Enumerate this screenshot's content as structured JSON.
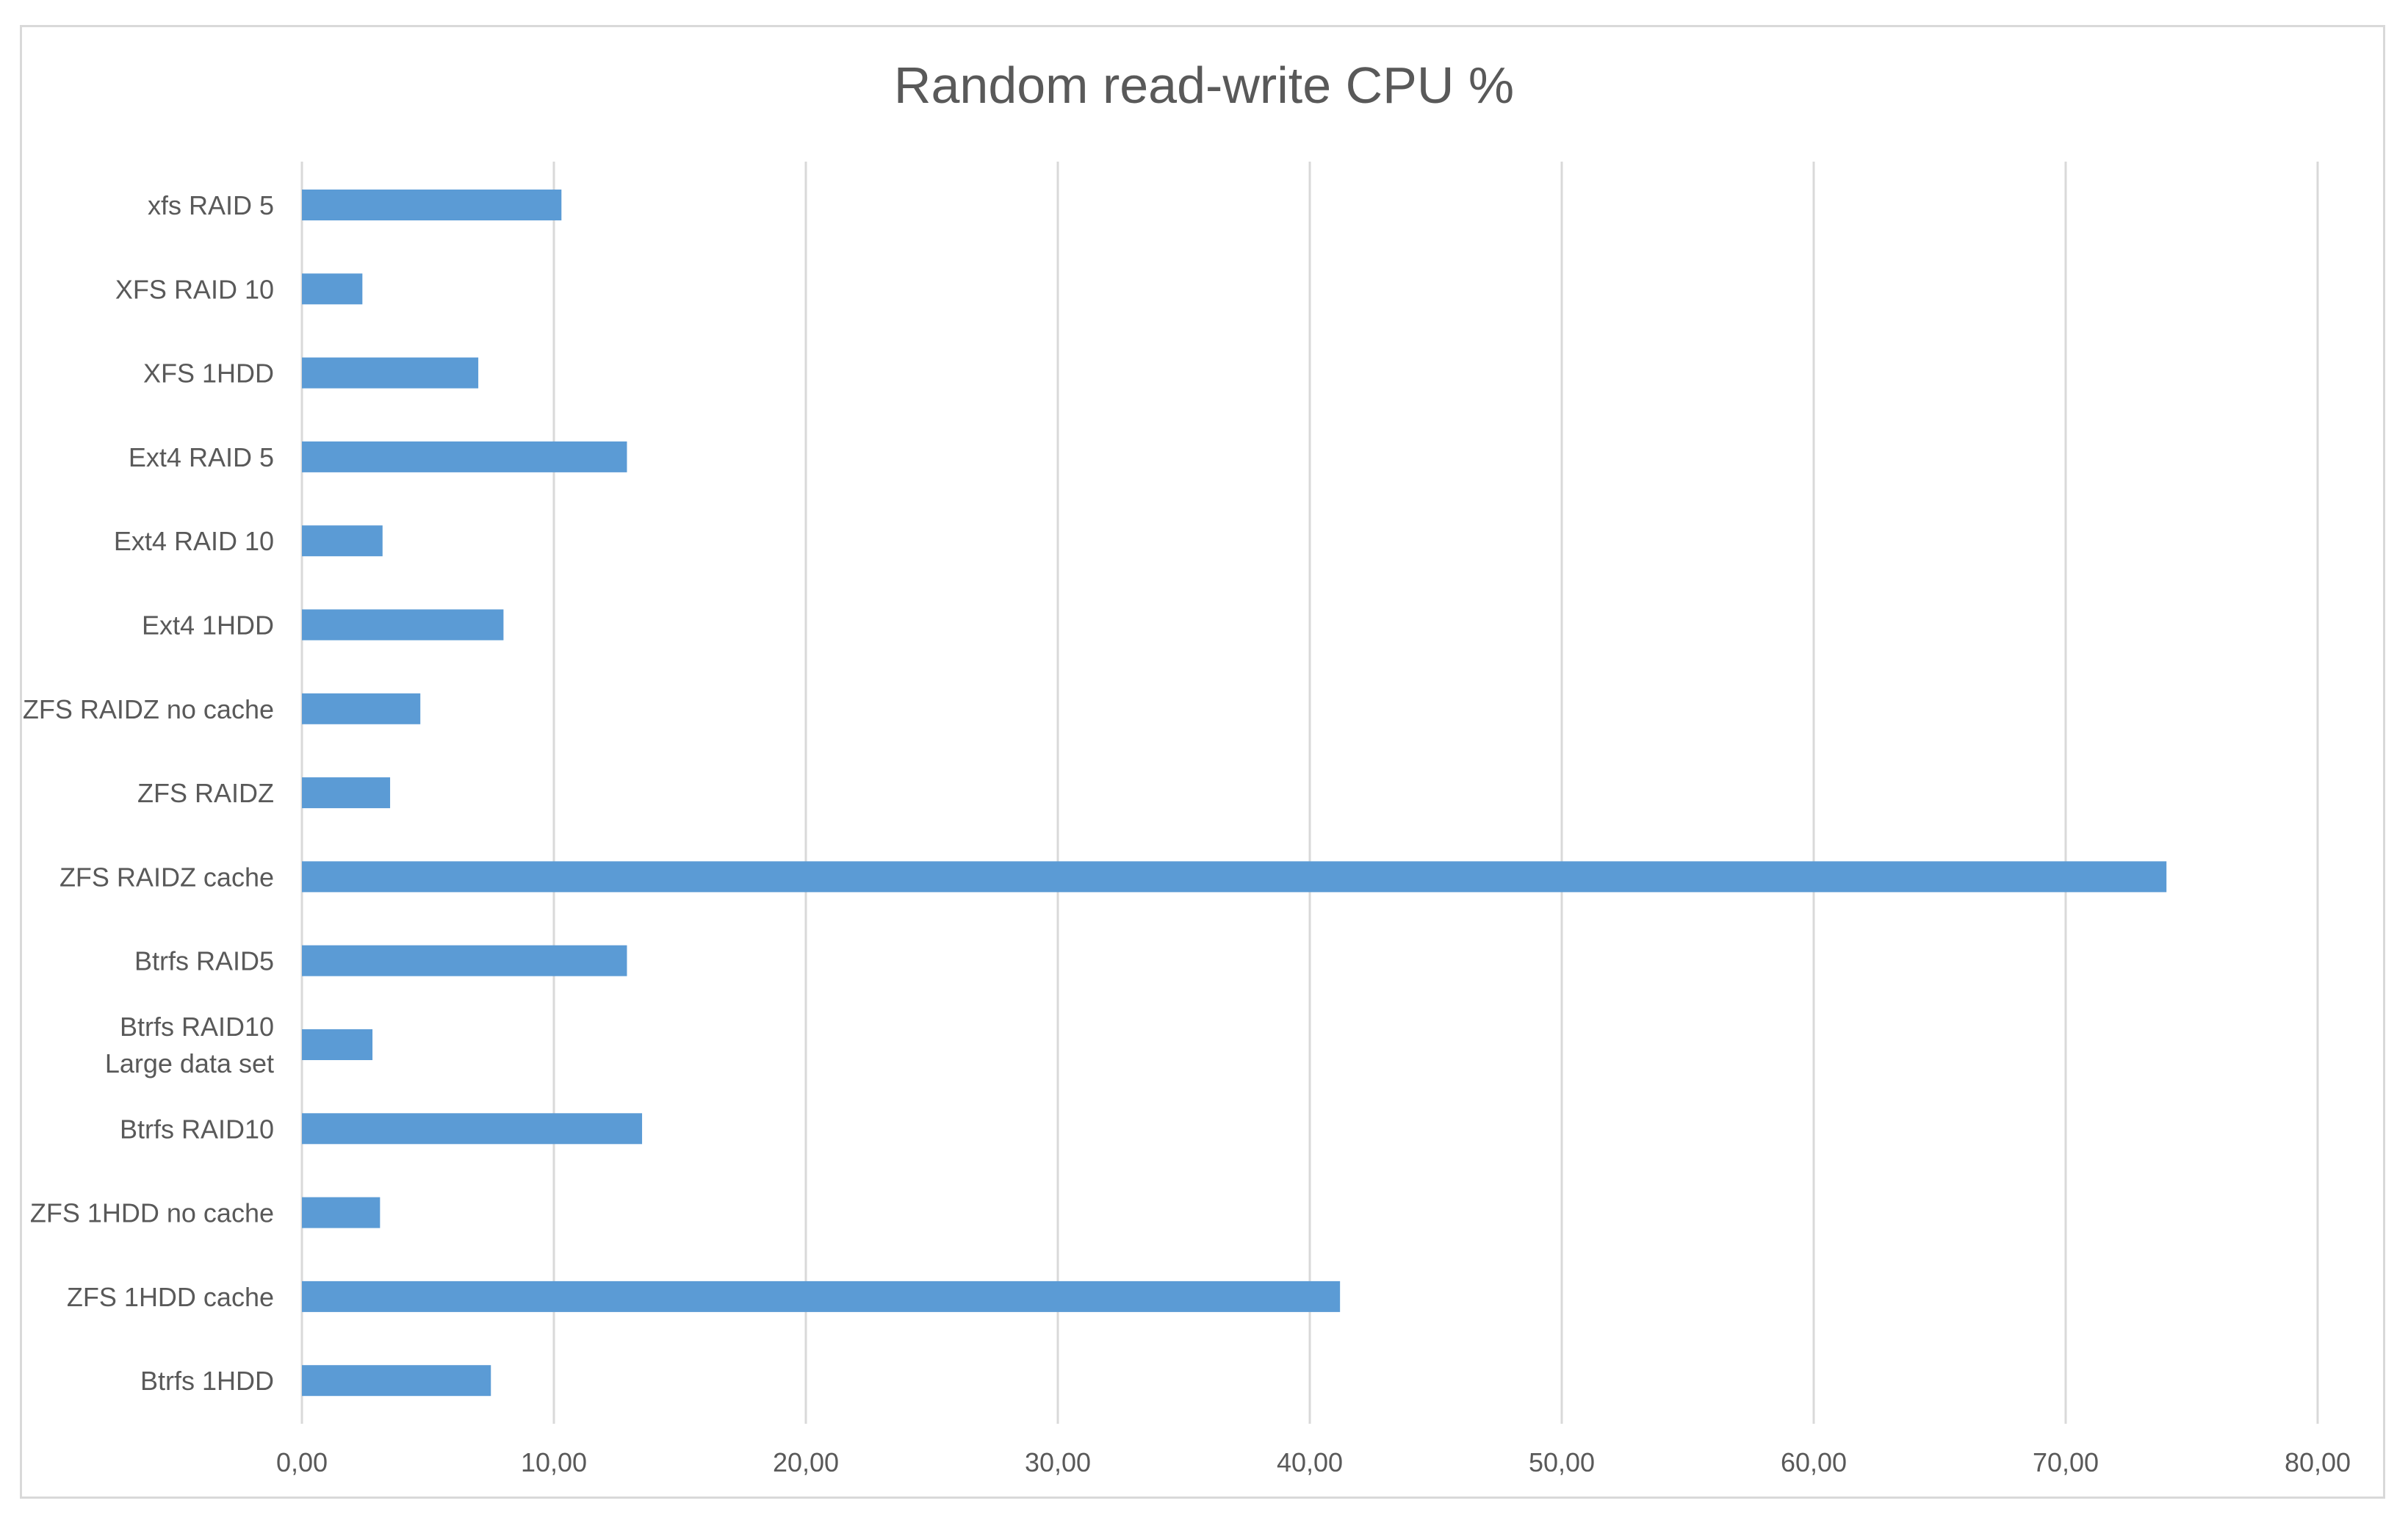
{
  "chart_data": {
    "type": "bar",
    "orientation": "horizontal",
    "title": "Random read-write CPU %",
    "xlabel": "",
    "ylabel": "",
    "xlim": [
      0,
      80
    ],
    "x_ticks": [
      "0,00",
      "10,00",
      "20,00",
      "30,00",
      "40,00",
      "50,00",
      "60,00",
      "70,00",
      "80,00"
    ],
    "grid": "vertical major gridlines",
    "legend": "none",
    "bar_color": "#5b9bd5",
    "categories": [
      [
        "xfs RAID 5"
      ],
      [
        "XFS  RAID 10"
      ],
      [
        "XFS 1HDD"
      ],
      [
        "Ext4  RAID 5"
      ],
      [
        "Ext4  RAID 10"
      ],
      [
        "Ext4 1HDD"
      ],
      [
        "ZFS RAIDZ no cache"
      ],
      [
        "ZFS RAIDZ"
      ],
      [
        "ZFS RAIDZ cache"
      ],
      [
        "Btrfs RAID5"
      ],
      [
        "Btrfs RAID10",
        "Large data set"
      ],
      [
        "Btrfs RAID10"
      ],
      [
        "ZFS 1HDD no cache"
      ],
      [
        "ZFS 1HDD cache"
      ],
      [
        "Btrfs 1HDD"
      ]
    ],
    "values": [
      10.3,
      2.4,
      7.0,
      12.9,
      3.2,
      8.0,
      4.7,
      3.5,
      74.0,
      12.9,
      2.8,
      13.5,
      3.1,
      41.2,
      7.5
    ]
  }
}
